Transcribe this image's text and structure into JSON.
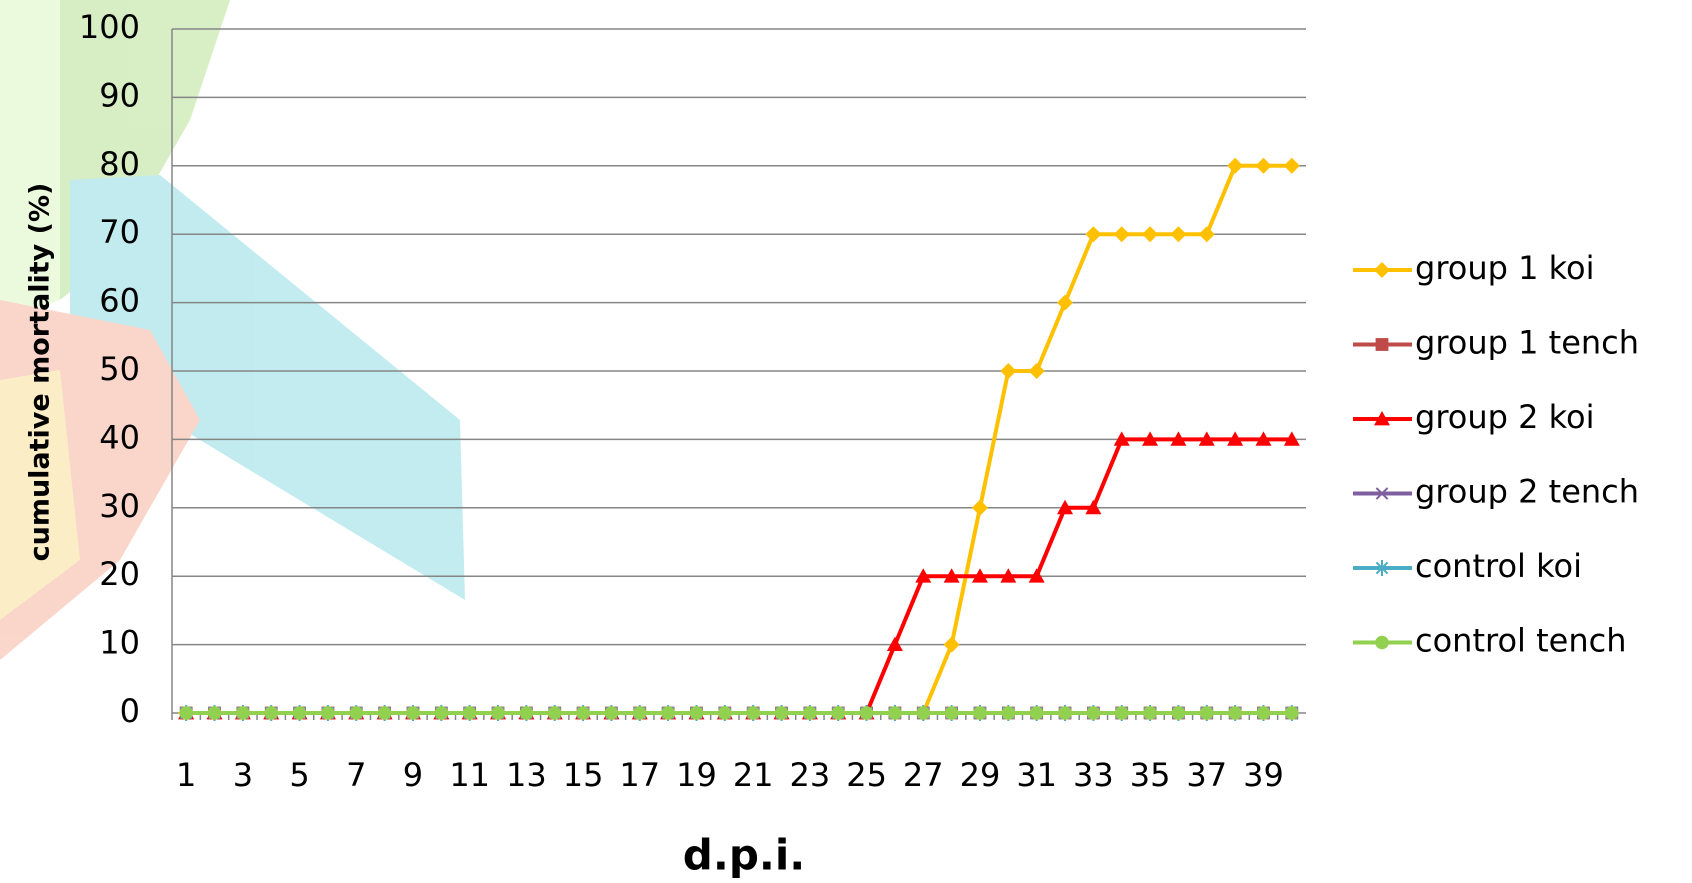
{
  "chart_data": {
    "type": "line",
    "x_label": "d.p.i.",
    "y_label": "cumulative mortality (%)",
    "categories": [
      "1",
      null,
      "3",
      null,
      "5",
      null,
      "7",
      null,
      "9",
      null,
      "11",
      null,
      "13",
      null,
      "15",
      null,
      "17",
      null,
      "19",
      null,
      "21",
      null,
      "23",
      null,
      "25",
      null,
      "27",
      null,
      "29",
      null,
      "31",
      null,
      "33",
      null,
      "35",
      null,
      "37",
      null,
      "39",
      null
    ],
    "ylim": [
      0,
      100
    ],
    "yticks": [
      0,
      10,
      20,
      30,
      40,
      50,
      60,
      70,
      80,
      90,
      100
    ],
    "grid": true,
    "legend": "right",
    "series": [
      {
        "name": "group 1 koi",
        "color": "#ffc000",
        "marker": "diamond",
        "values": [
          0,
          0,
          0,
          0,
          0,
          0,
          0,
          0,
          0,
          0,
          0,
          0,
          0,
          0,
          0,
          0,
          0,
          0,
          0,
          0,
          0,
          0,
          0,
          0,
          0,
          0,
          0,
          10,
          30,
          50,
          50,
          60,
          70,
          70,
          70,
          70,
          70,
          80,
          80,
          80
        ]
      },
      {
        "name": "group 1 tench",
        "color": "#be4b48",
        "marker": "square",
        "values": [
          0,
          0,
          0,
          0,
          0,
          0,
          0,
          0,
          0,
          0,
          0,
          0,
          0,
          0,
          0,
          0,
          0,
          0,
          0,
          0,
          0,
          0,
          0,
          0,
          0,
          0,
          0,
          0,
          0,
          0,
          0,
          0,
          0,
          0,
          0,
          0,
          0,
          0,
          0,
          0
        ]
      },
      {
        "name": "group 2 koi",
        "color": "#ff0000",
        "marker": "triangle",
        "values": [
          0,
          0,
          0,
          0,
          0,
          0,
          0,
          0,
          0,
          0,
          0,
          0,
          0,
          0,
          0,
          0,
          0,
          0,
          0,
          0,
          0,
          0,
          0,
          0,
          0,
          10,
          20,
          20,
          20,
          20,
          20,
          30,
          30,
          40,
          40,
          40,
          40,
          40,
          40,
          40
        ]
      },
      {
        "name": "group 2 tench",
        "color": "#7f5fa0",
        "marker": "x",
        "values": [
          0,
          0,
          0,
          0,
          0,
          0,
          0,
          0,
          0,
          0,
          0,
          0,
          0,
          0,
          0,
          0,
          0,
          0,
          0,
          0,
          0,
          0,
          0,
          0,
          0,
          0,
          0,
          0,
          0,
          0,
          0,
          0,
          0,
          0,
          0,
          0,
          0,
          0,
          0,
          0
        ]
      },
      {
        "name": "control koi",
        "color": "#4bacc6",
        "marker": "star",
        "values": [
          0,
          0,
          0,
          0,
          0,
          0,
          0,
          0,
          0,
          0,
          0,
          0,
          0,
          0,
          0,
          0,
          0,
          0,
          0,
          0,
          0,
          0,
          0,
          0,
          0,
          0,
          0,
          0,
          0,
          0,
          0,
          0,
          0,
          0,
          0,
          0,
          0,
          0,
          0,
          0
        ]
      },
      {
        "name": "control tench",
        "color": "#92d050",
        "marker": "circle",
        "values": [
          0,
          0,
          0,
          0,
          0,
          0,
          0,
          0,
          0,
          0,
          0,
          0,
          0,
          0,
          0,
          0,
          0,
          0,
          0,
          0,
          0,
          0,
          0,
          0,
          0,
          0,
          0,
          0,
          0,
          0,
          0,
          0,
          0,
          0,
          0,
          0,
          0,
          0,
          0,
          0
        ]
      }
    ]
  }
}
